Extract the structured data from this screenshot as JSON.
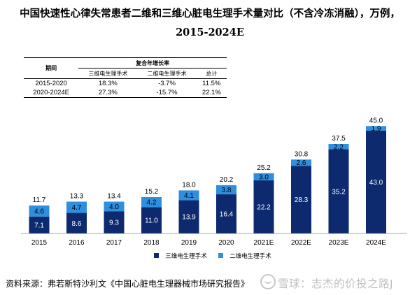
{
  "title": "中国快速性心律失常患者二维和三维心脏电生理手术量对比（不含冷冻消融），万例，2015-2024E",
  "table": {
    "period_header": "期间",
    "group_header": "复合年增长率",
    "columns": [
      "三维电生理手术",
      "二维电生理手术",
      "总计"
    ],
    "rows": [
      {
        "period": "2015-2020",
        "values": [
          "18.3%",
          "-3.7%",
          "11.5%"
        ]
      },
      {
        "period": "2020-2024E",
        "values": [
          "27.3%",
          "-15.7%",
          "22.1%"
        ]
      }
    ]
  },
  "chart_data": {
    "type": "bar",
    "stacked": true,
    "categories": [
      "2015",
      "2016",
      "2017",
      "2018",
      "2019",
      "2020",
      "2021E",
      "2022E",
      "2023E",
      "2024E"
    ],
    "series": [
      {
        "name": "三维电生理手术",
        "color": "#0d2a6e",
        "values": [
          7.1,
          8.6,
          9.3,
          11.0,
          13.9,
          16.4,
          22.2,
          28.3,
          35.2,
          43.0
        ]
      },
      {
        "name": "二维电生理手术",
        "color": "#2e8fe0",
        "values": [
          4.6,
          4.7,
          4.0,
          4.2,
          4.1,
          3.8,
          3.0,
          2.6,
          2.2,
          1.9
        ]
      }
    ],
    "totals": [
      "11.7",
      "13.3",
      "13.4",
      "15.2",
      "18.0",
      "20.2",
      "25.2",
      "30.8",
      "37.5",
      "45.0"
    ],
    "value_labels": {
      "三维电生理手术": [
        "7.1",
        "8.6",
        "9.3",
        "11.0",
        "13.9",
        "16.4",
        "22.2",
        "28.3",
        "35.2",
        "43.0"
      ],
      "二维电生理手术": [
        "4.6",
        "4.7",
        "4.0",
        "4.2",
        "4.1",
        "3.8",
        "3.0",
        "2.6",
        "2.2",
        "1.9"
      ]
    },
    "ylim": [
      0,
      45
    ],
    "grid": false,
    "legend_position": "bottom"
  },
  "footer": {
    "source": "资料来源：弗若斯特沙利文《中国心脏电生理器械市场研究报告》"
  },
  "watermark": {
    "text": "雪球：志杰的价投之路J"
  }
}
